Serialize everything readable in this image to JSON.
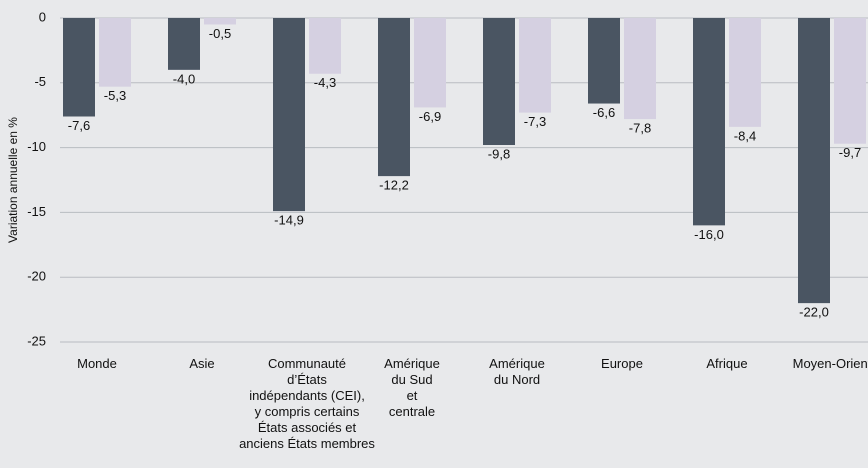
{
  "chart_data": {
    "type": "bar",
    "y_label": "Variation annuelle en %",
    "categories": [
      "Monde",
      "Asie",
      "Communauté\nd’États\nindépendants (CEI),\ny compris certains\nÉtats associés et\nanciens États membres",
      "Amérique\ndu Sud\net\ncentrale",
      "Amérique\ndu Nord",
      "Europe",
      "Afrique",
      "Moyen-Orient"
    ],
    "series": [
      {
        "color": "#4a5562",
        "values": [
          -7.6,
          -4.0,
          -14.9,
          -12.2,
          -9.8,
          -6.6,
          -16.0,
          -22.0
        ],
        "value_labels": [
          "-7,6",
          "-4,0",
          "-14,9",
          "-12,2",
          "-9,8",
          "-6,6",
          "-16,0",
          "-22,0"
        ]
      },
      {
        "color": "#d5d0e1",
        "values": [
          -5.3,
          -0.5,
          -4.3,
          -6.9,
          -7.3,
          -7.8,
          -8.4,
          -9.7
        ],
        "value_labels": [
          "-5,3",
          "-0,5",
          "-4,3",
          "-6,9",
          "-7,3",
          "-7,8",
          "-8,4",
          "-9,7"
        ]
      }
    ],
    "ylim": [
      -25,
      0
    ],
    "yticks": [
      0,
      -5,
      -10,
      -15,
      -20,
      -25
    ],
    "grid": true
  }
}
